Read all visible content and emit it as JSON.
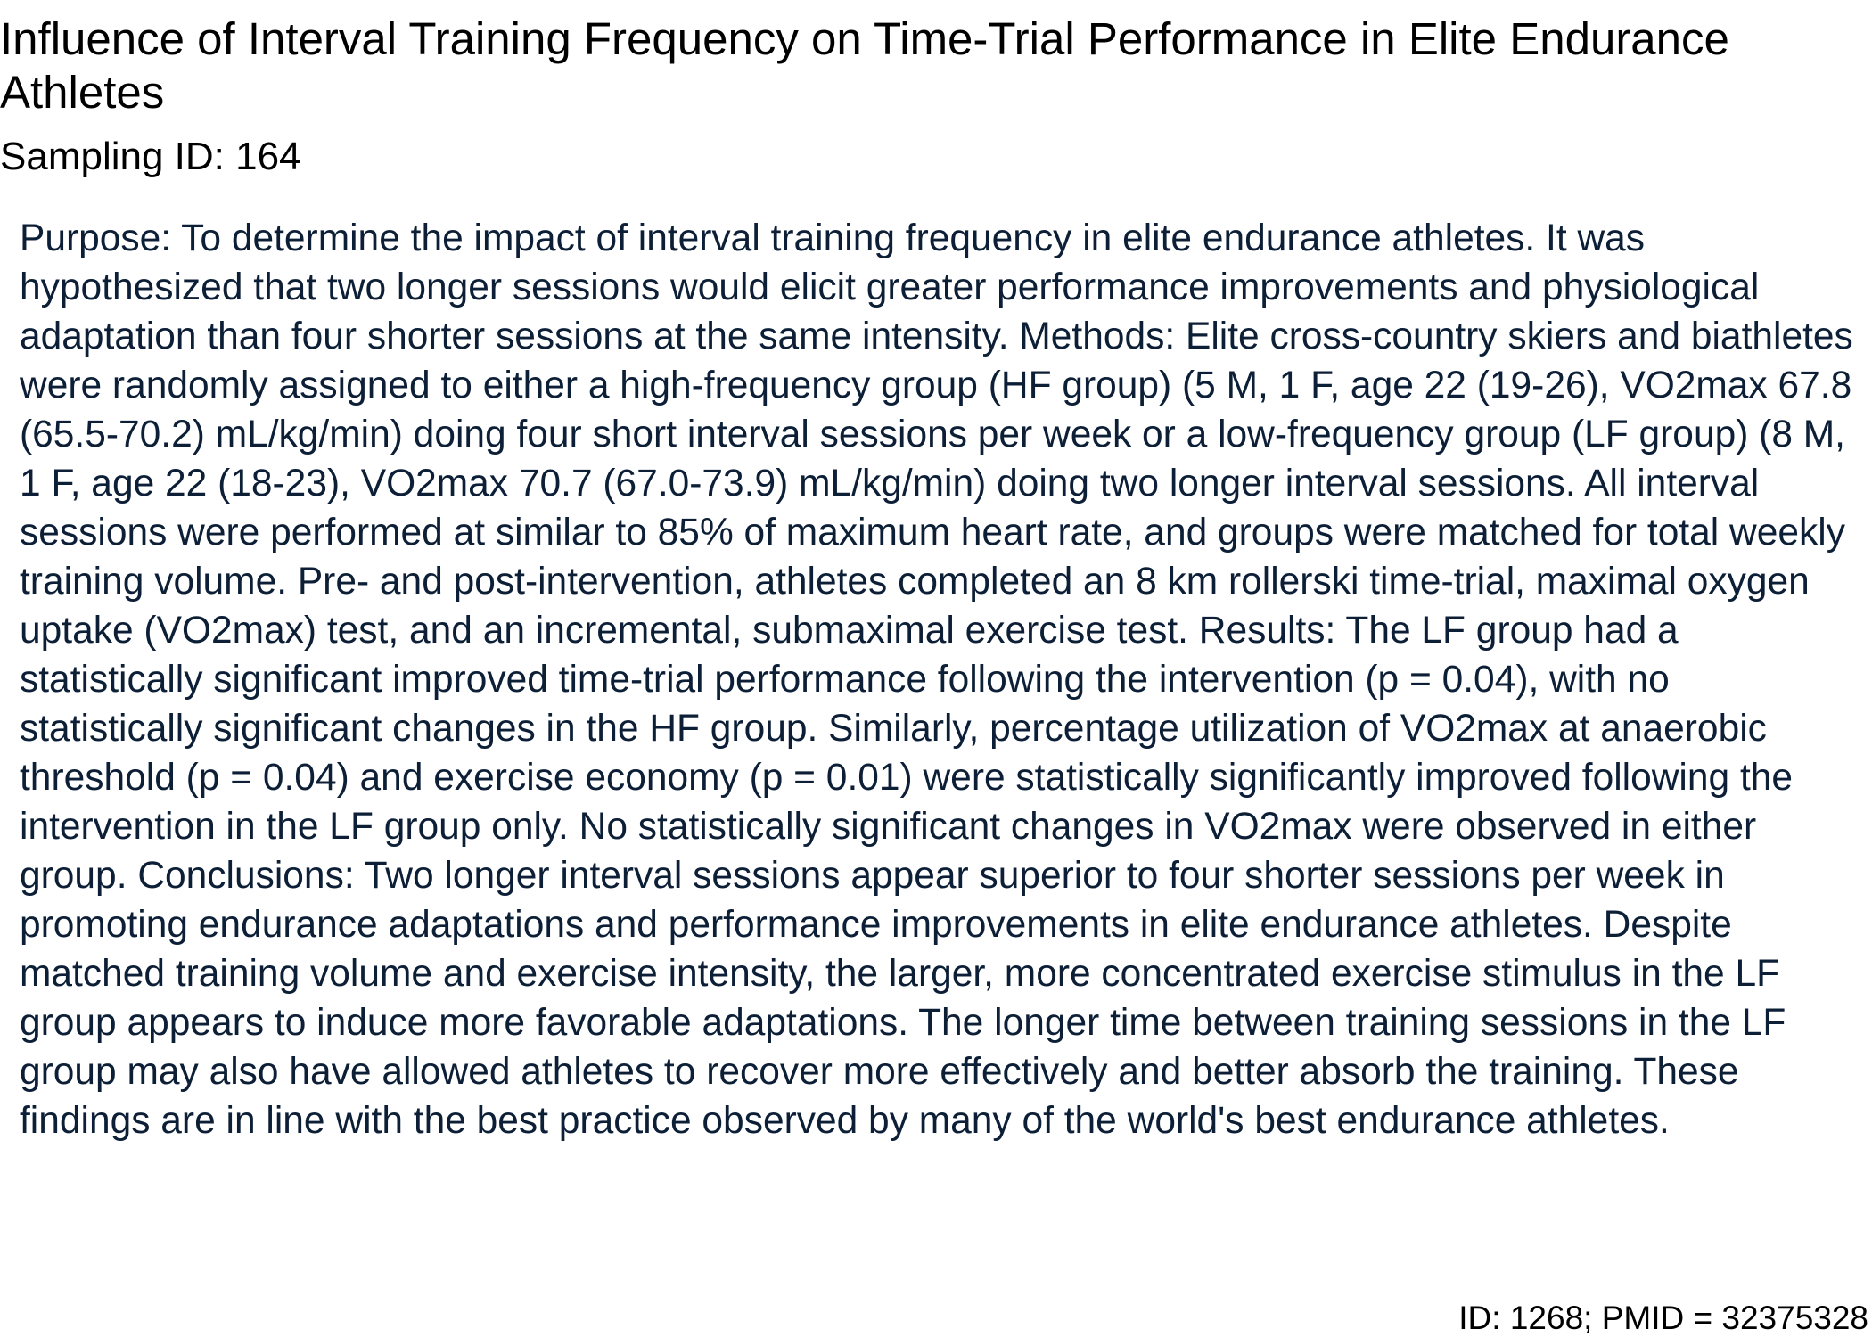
{
  "document": {
    "title": "Influence of Interval Training Frequency on Time-Trial Performance in Elite Endurance Athletes",
    "sampling_id": "Sampling ID: 164",
    "abstract": "Purpose: To determine the impact of interval training frequency in elite endurance athletes. It was hypothesized that two longer sessions would elicit greater performance improvements and physiological adaptation than four shorter sessions at the same intensity. Methods: Elite cross-country skiers and biathletes were randomly assigned to either a high-frequency group (HF group) (5 M, 1 F, age 22 (19-26), VO2max 67.8 (65.5-70.2) mL/kg/min) doing four short interval sessions per week or a low-frequency group (LF group) (8 M, 1 F, age 22 (18-23), VO2max 70.7 (67.0-73.9) mL/kg/min) doing two longer interval sessions. All interval sessions were performed at similar to 85% of maximum heart rate, and groups were matched for total weekly training volume. Pre- and post-intervention, athletes completed an 8 km rollerski time-trial, maximal oxygen uptake (VO2max) test, and an incremental, submaximal exercise test. Results: The LF group had a statistically significant improved time-trial performance following the intervention (p = 0.04), with no statistically significant changes in the HF group. Similarly, percentage utilization of VO2max at anaerobic threshold (p = 0.04) and exercise economy (p = 0.01) were statistically significantly improved following the intervention in the LF group only. No statistically significant changes in VO2max were observed in either group. Conclusions: Two longer interval sessions appear superior to four shorter sessions per week in promoting endurance adaptations and performance improvements in elite endurance athletes. Despite matched training volume and exercise intensity, the larger, more concentrated exercise stimulus in the LF group appears to induce more favorable adaptations. The longer time between training sessions in the LF group may also have allowed athletes to recover more effectively and better absorb the training. These findings are in line with the best practice observed by many of the world's best endurance athletes.",
    "footer_id": "ID: 1268; PMID = 32375328"
  },
  "colors": {
    "title_text": "#000000",
    "abstract_text": "#0c1f36",
    "background": "#ffffff"
  }
}
